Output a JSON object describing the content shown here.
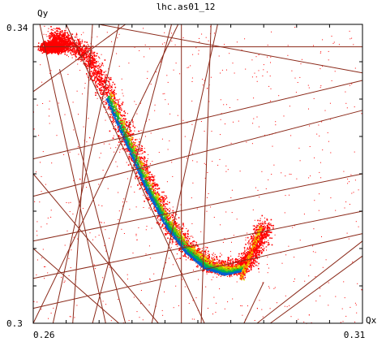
{
  "chart_data": {
    "type": "scatter",
    "title": "lhc.as01_12",
    "xlabel": "Qx",
    "ylabel": "Qy",
    "xlim": [
      0.26,
      0.31
    ],
    "ylim": [
      0.3,
      0.34
    ],
    "x_tick_labels": [
      {
        "value": 0.26,
        "label": "0.26"
      },
      {
        "value": 0.31,
        "label": "0.31"
      }
    ],
    "y_tick_labels": [
      {
        "value": 0.3,
        "label": "0.3"
      },
      {
        "value": 0.34,
        "label": "0.34"
      }
    ],
    "grid": false,
    "legend": "none",
    "colors": {
      "scatter": "#ff0000",
      "resonance_lines": "#8b2a1a",
      "density_ramp": [
        "#ff0000",
        "#ff8c00",
        "#e8d800",
        "#7ccd00",
        "#00b050",
        "#0060d0"
      ]
    },
    "series": [
      {
        "values": "dense red point cloud along the curved band from top-left (0.262, 0.338) to lower-right (0.292, 0.305); color encodes density from red (low) through yellow and green to blue (high)",
        "curve": [
          {
            "x": 0.2625,
            "y": 0.3378
          },
          {
            "x": 0.265,
            "y": 0.337
          },
          {
            "x": 0.268,
            "y": 0.335
          },
          {
            "x": 0.271,
            "y": 0.33
          },
          {
            "x": 0.274,
            "y": 0.324
          },
          {
            "x": 0.277,
            "y": 0.318
          },
          {
            "x": 0.28,
            "y": 0.313
          },
          {
            "x": 0.283,
            "y": 0.3095
          },
          {
            "x": 0.286,
            "y": 0.3073
          },
          {
            "x": 0.289,
            "y": 0.3065
          },
          {
            "x": 0.2915,
            "y": 0.307
          },
          {
            "x": 0.2935,
            "y": 0.3095
          },
          {
            "x": 0.2948,
            "y": 0.3125
          }
        ]
      }
    ],
    "resonance_lines": [
      {
        "x1": 0.26,
        "y1": 0.337,
        "x2": 0.31,
        "y2": 0.337
      },
      {
        "x1": 0.2825,
        "y1": 0.3,
        "x2": 0.2825,
        "y2": 0.34
      },
      {
        "x1": 0.27,
        "y1": 0.34,
        "x2": 0.31,
        "y2": 0.3335
      },
      {
        "x1": 0.26,
        "y1": 0.331,
        "x2": 0.274,
        "y2": 0.34
      },
      {
        "x1": 0.26,
        "y1": 0.322,
        "x2": 0.31,
        "y2": 0.3325
      },
      {
        "x1": 0.26,
        "y1": 0.317,
        "x2": 0.31,
        "y2": 0.3285
      },
      {
        "x1": 0.26,
        "y1": 0.311,
        "x2": 0.31,
        "y2": 0.32
      },
      {
        "x1": 0.26,
        "y1": 0.306,
        "x2": 0.31,
        "y2": 0.315
      },
      {
        "x1": 0.26,
        "y1": 0.3,
        "x2": 0.282,
        "y2": 0.34
      },
      {
        "x1": 0.263,
        "y1": 0.3,
        "x2": 0.273,
        "y2": 0.34
      },
      {
        "x1": 0.266,
        "y1": 0.3,
        "x2": 0.269,
        "y2": 0.34
      },
      {
        "x1": 0.26,
        "y1": 0.31,
        "x2": 0.273,
        "y2": 0.3
      },
      {
        "x1": 0.26,
        "y1": 0.32,
        "x2": 0.279,
        "y2": 0.3
      },
      {
        "x1": 0.265,
        "y1": 0.34,
        "x2": 0.286,
        "y2": 0.3
      },
      {
        "x1": 0.264,
        "y1": 0.334,
        "x2": 0.274,
        "y2": 0.3
      },
      {
        "x1": 0.269,
        "y1": 0.3,
        "x2": 0.281,
        "y2": 0.34
      },
      {
        "x1": 0.261,
        "y1": 0.34,
        "x2": 0.271,
        "y2": 0.3
      },
      {
        "x1": 0.26,
        "y1": 0.302,
        "x2": 0.31,
        "y2": 0.312
      },
      {
        "x1": 0.2855,
        "y1": 0.3,
        "x2": 0.287,
        "y2": 0.34
      },
      {
        "x1": 0.278,
        "y1": 0.3,
        "x2": 0.288,
        "y2": 0.34
      },
      {
        "x1": 0.294,
        "y1": 0.3,
        "x2": 0.31,
        "y2": 0.311
      },
      {
        "x1": 0.296,
        "y1": 0.3,
        "x2": 0.31,
        "y2": 0.309
      },
      {
        "x1": 0.292,
        "y1": 0.3,
        "x2": 0.295,
        "y2": 0.3055
      }
    ]
  }
}
